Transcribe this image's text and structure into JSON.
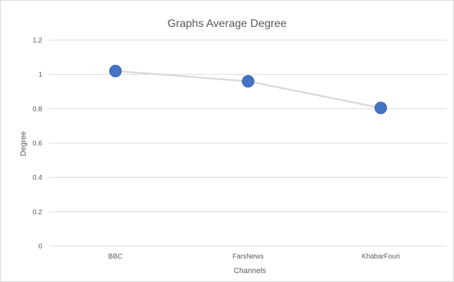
{
  "chart_data": {
    "type": "line",
    "title": "Graphs Average Degree",
    "xlabel": "Channels",
    "ylabel": "Degree",
    "categories": [
      "BBC",
      "FarsNews",
      "KhabarFouri"
    ],
    "series": [
      {
        "values": [
          1.02,
          0.96,
          0.805
        ]
      }
    ],
    "ylim": [
      0,
      1.2
    ],
    "yticks": [
      "0",
      "0.2",
      "0.4",
      "0.6",
      "0.8",
      "1",
      "1.2"
    ],
    "grid": true,
    "legend": "none",
    "colors": {
      "line": "#d9d9d9",
      "marker": "#4472c4",
      "marker_stroke": "#3a63ad"
    }
  }
}
